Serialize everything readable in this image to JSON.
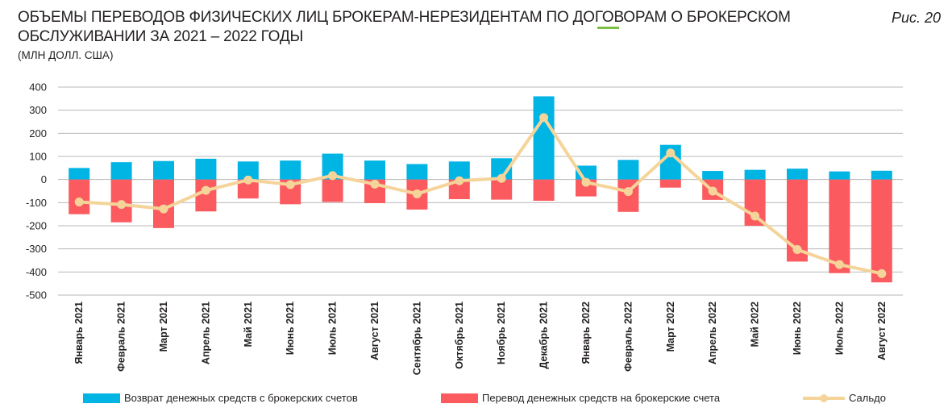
{
  "figure_label": "Рис. 20",
  "colors": {
    "inflow": "#00b4e3",
    "outflow": "#fb5b5f",
    "saldo": "#f5d49a",
    "grid": "#b8b8b8"
  },
  "chart_data": {
    "type": "bar",
    "title": "ОБЪЕМЫ ПЕРЕВОДОВ ФИЗИЧЕСКИХ ЛИЦ БРОКЕРАМ-НЕРЕЗИДЕНТАМ ПО ДОГОВОРАМ О БРОКЕРСКОМ ОБСЛУЖИВАНИИ ЗА 2021 – 2022 ГОДЫ",
    "subtitle": "(МЛН ДОЛЛ. США)",
    "ylim": [
      -500,
      400
    ],
    "yticks": [
      400,
      300,
      200,
      100,
      0,
      -100,
      -200,
      -300,
      -400,
      -500
    ],
    "categories": [
      "Январь 2021",
      "Февраль 2021",
      "Март 2021",
      "Апрель 2021",
      "Май 2021",
      "Июнь 2021",
      "Июль 2021",
      "Август 2021",
      "Сентябрь 2021",
      "Октябрь 2021",
      "Ноябрь 2021",
      "Декабрь 2021",
      "Январь 2022",
      "Февраль 2022",
      "Март 2022",
      "Апрель 2022",
      "Май 2022",
      "Июнь 2022",
      "Июль 2022",
      "Август 2022"
    ],
    "series": [
      {
        "name": "Возврат денежных средств с брокерских счетов",
        "kind": "bar",
        "values": [
          50,
          75,
          80,
          90,
          78,
          82,
          112,
          82,
          67,
          78,
          92,
          360,
          60,
          85,
          150,
          37,
          42,
          47,
          35,
          38
        ]
      },
      {
        "name": "Перевод денежных средств на брокерские счета",
        "kind": "bar",
        "values": [
          -150,
          -185,
          -210,
          -138,
          -82,
          -107,
          -97,
          -102,
          -130,
          -85,
          -87,
          -92,
          -73,
          -140,
          -35,
          -88,
          -200,
          -355,
          -405,
          -445
        ]
      },
      {
        "name": "Сальдо",
        "kind": "line",
        "values": [
          -97,
          -108,
          -127,
          -47,
          -2,
          -22,
          17,
          -20,
          -62,
          -5,
          5,
          268,
          -12,
          -52,
          115,
          -50,
          -158,
          -303,
          -368,
          -407
        ]
      }
    ]
  }
}
